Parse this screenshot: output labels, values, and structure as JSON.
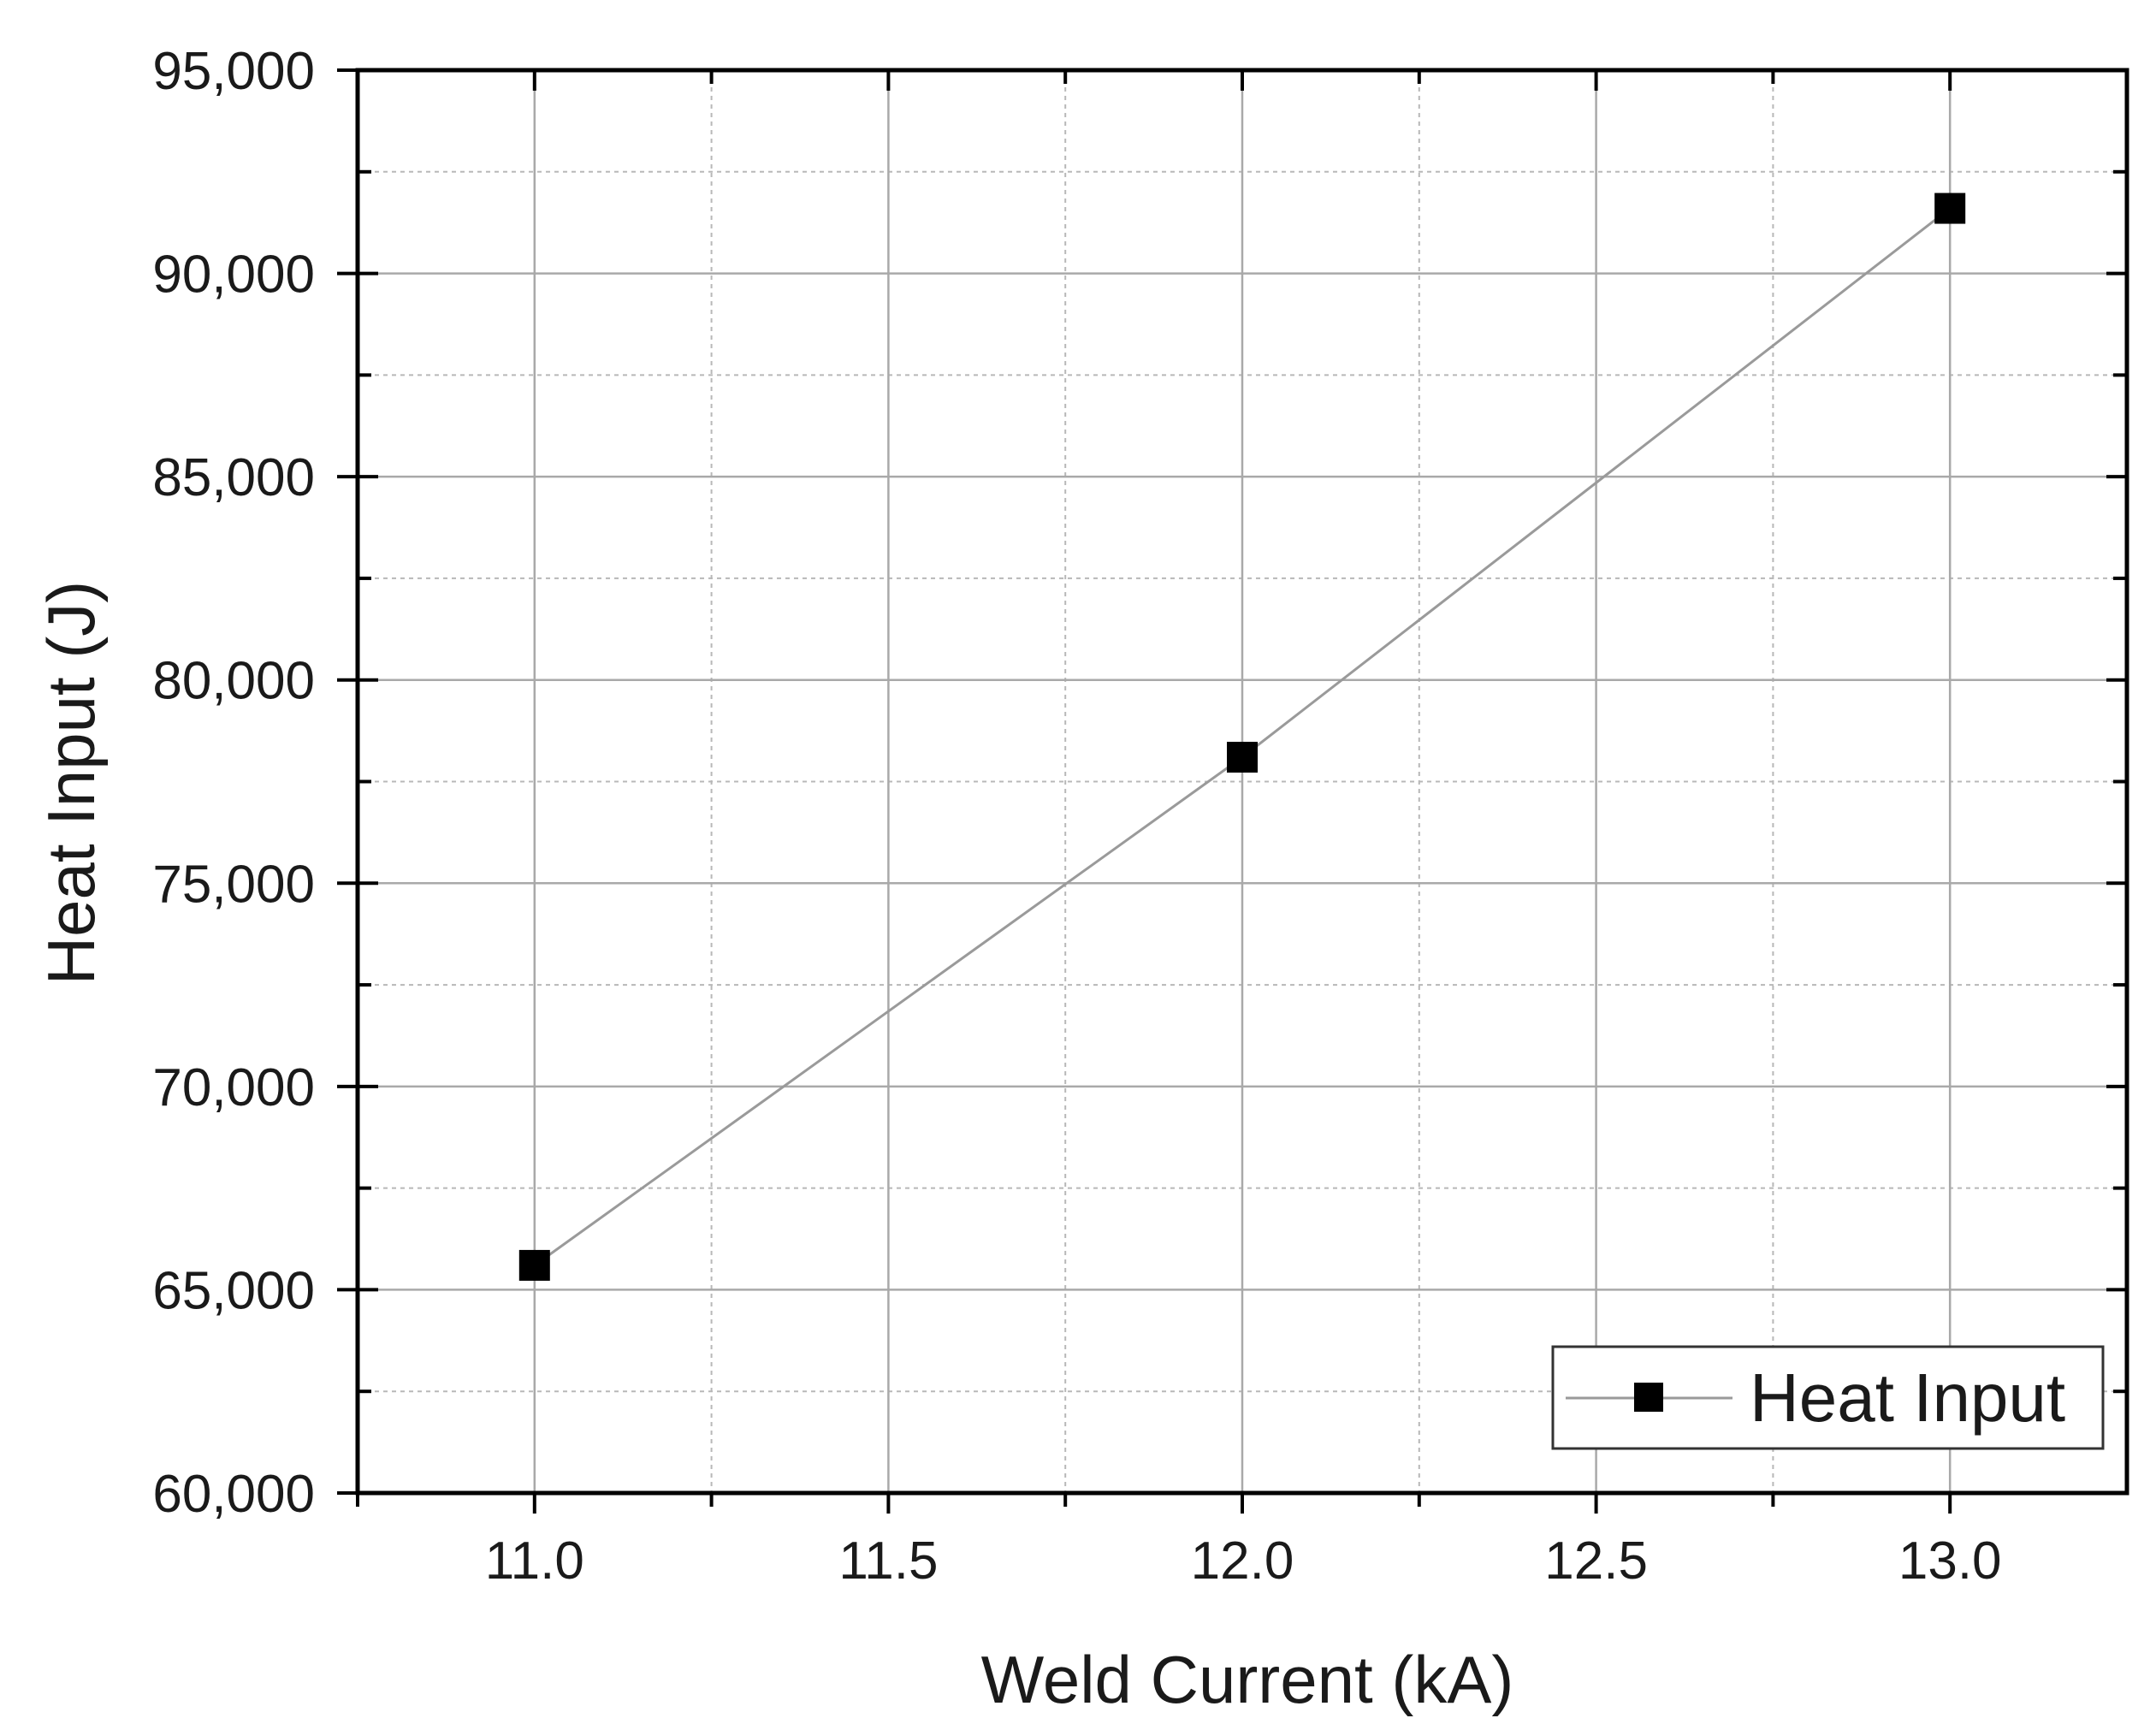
{
  "chart_data": {
    "type": "line",
    "xlabel": "Weld Current (kA)",
    "ylabel": "Heat Input (J)",
    "xlim": [
      10.75,
      13.25
    ],
    "ylim": [
      60000,
      95000
    ],
    "x_ticks": [
      11.0,
      11.5,
      12.0,
      12.5,
      13.0
    ],
    "x_tick_labels": [
      "11.0",
      "11.5",
      "12.0",
      "12.5",
      "13.0"
    ],
    "y_ticks": [
      60000,
      65000,
      70000,
      75000,
      80000,
      85000,
      90000,
      95000
    ],
    "y_tick_labels": [
      "60,000",
      "65,000",
      "70,000",
      "75,000",
      "80,000",
      "85,000",
      "90,000",
      "95,000"
    ],
    "grid": true,
    "legend_position": "bottom-right",
    "series": [
      {
        "name": "Heat Input",
        "marker": "square",
        "line_color": "#9a9a9a",
        "marker_color": "#000000",
        "x": [
          11.0,
          12.0,
          13.0
        ],
        "y": [
          65600,
          78100,
          91600
        ]
      }
    ]
  }
}
